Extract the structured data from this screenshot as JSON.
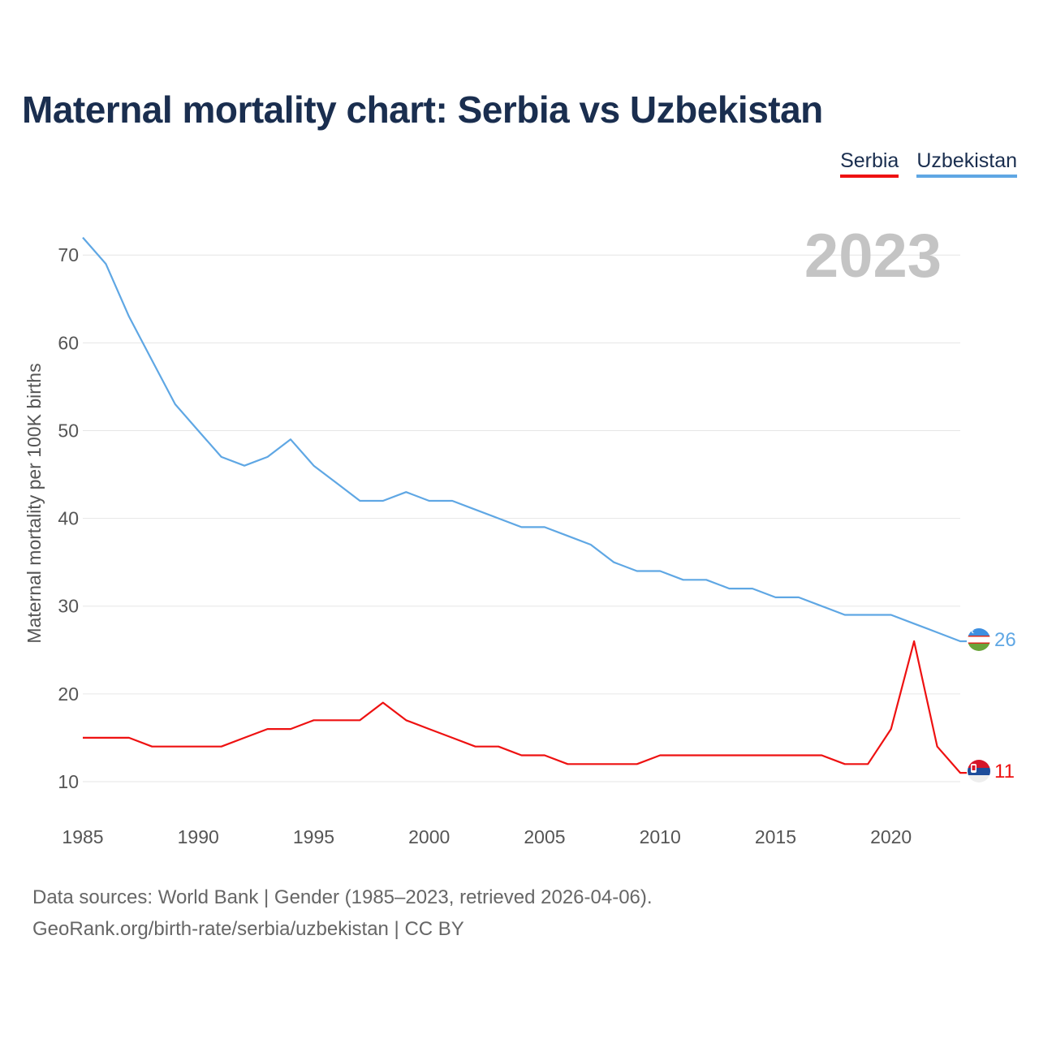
{
  "chart_data": {
    "type": "line",
    "title": "Maternal mortality chart: Serbia vs Uzbekistan",
    "ylabel": "Maternal mortality per 100K births",
    "xlabel": "",
    "year_label": "2023",
    "x": [
      1985,
      1986,
      1987,
      1988,
      1989,
      1990,
      1991,
      1992,
      1993,
      1994,
      1995,
      1996,
      1997,
      1998,
      1999,
      2000,
      2001,
      2002,
      2003,
      2004,
      2005,
      2006,
      2007,
      2008,
      2009,
      2010,
      2011,
      2012,
      2013,
      2014,
      2015,
      2016,
      2017,
      2018,
      2019,
      2020,
      2021,
      2022,
      2023
    ],
    "xlim": [
      1985,
      2023
    ],
    "ylim": [
      5,
      74
    ],
    "x_ticks": [
      1985,
      1990,
      1995,
      2000,
      2005,
      2010,
      2015,
      2020
    ],
    "y_ticks": [
      10,
      20,
      30,
      40,
      50,
      60,
      70
    ],
    "grid": true,
    "legend_position": "top-right",
    "series": [
      {
        "name": "Serbia",
        "color": "#ee1111",
        "end_label": "11",
        "values": [
          15,
          15,
          15,
          14,
          14,
          14,
          14,
          15,
          16,
          16,
          17,
          17,
          17,
          19,
          17,
          16,
          15,
          14,
          14,
          13,
          13,
          12,
          12,
          12,
          12,
          13,
          13,
          13,
          13,
          13,
          13,
          13,
          13,
          12,
          12,
          16,
          26,
          14,
          11
        ]
      },
      {
        "name": "Uzbekistan",
        "color": "#5fa7e4",
        "end_label": "26",
        "values": [
          72,
          69,
          63,
          58,
          53,
          50,
          47,
          46,
          47,
          49,
          46,
          44,
          42,
          42,
          43,
          42,
          42,
          41,
          40,
          39,
          39,
          38,
          37,
          35,
          34,
          34,
          33,
          33,
          32,
          32,
          31,
          31,
          30,
          29,
          29,
          29,
          28,
          27,
          26
        ]
      }
    ]
  },
  "footer": {
    "line1": "Data sources: World Bank | Gender (1985–2023, retrieved 2026-04-06).",
    "line2": "GeoRank.org/birth-rate/serbia/uzbekistan | CC BY"
  },
  "icons": {
    "serbia": "serbia-flag-icon",
    "uzbekistan": "uzbekistan-flag-icon"
  }
}
